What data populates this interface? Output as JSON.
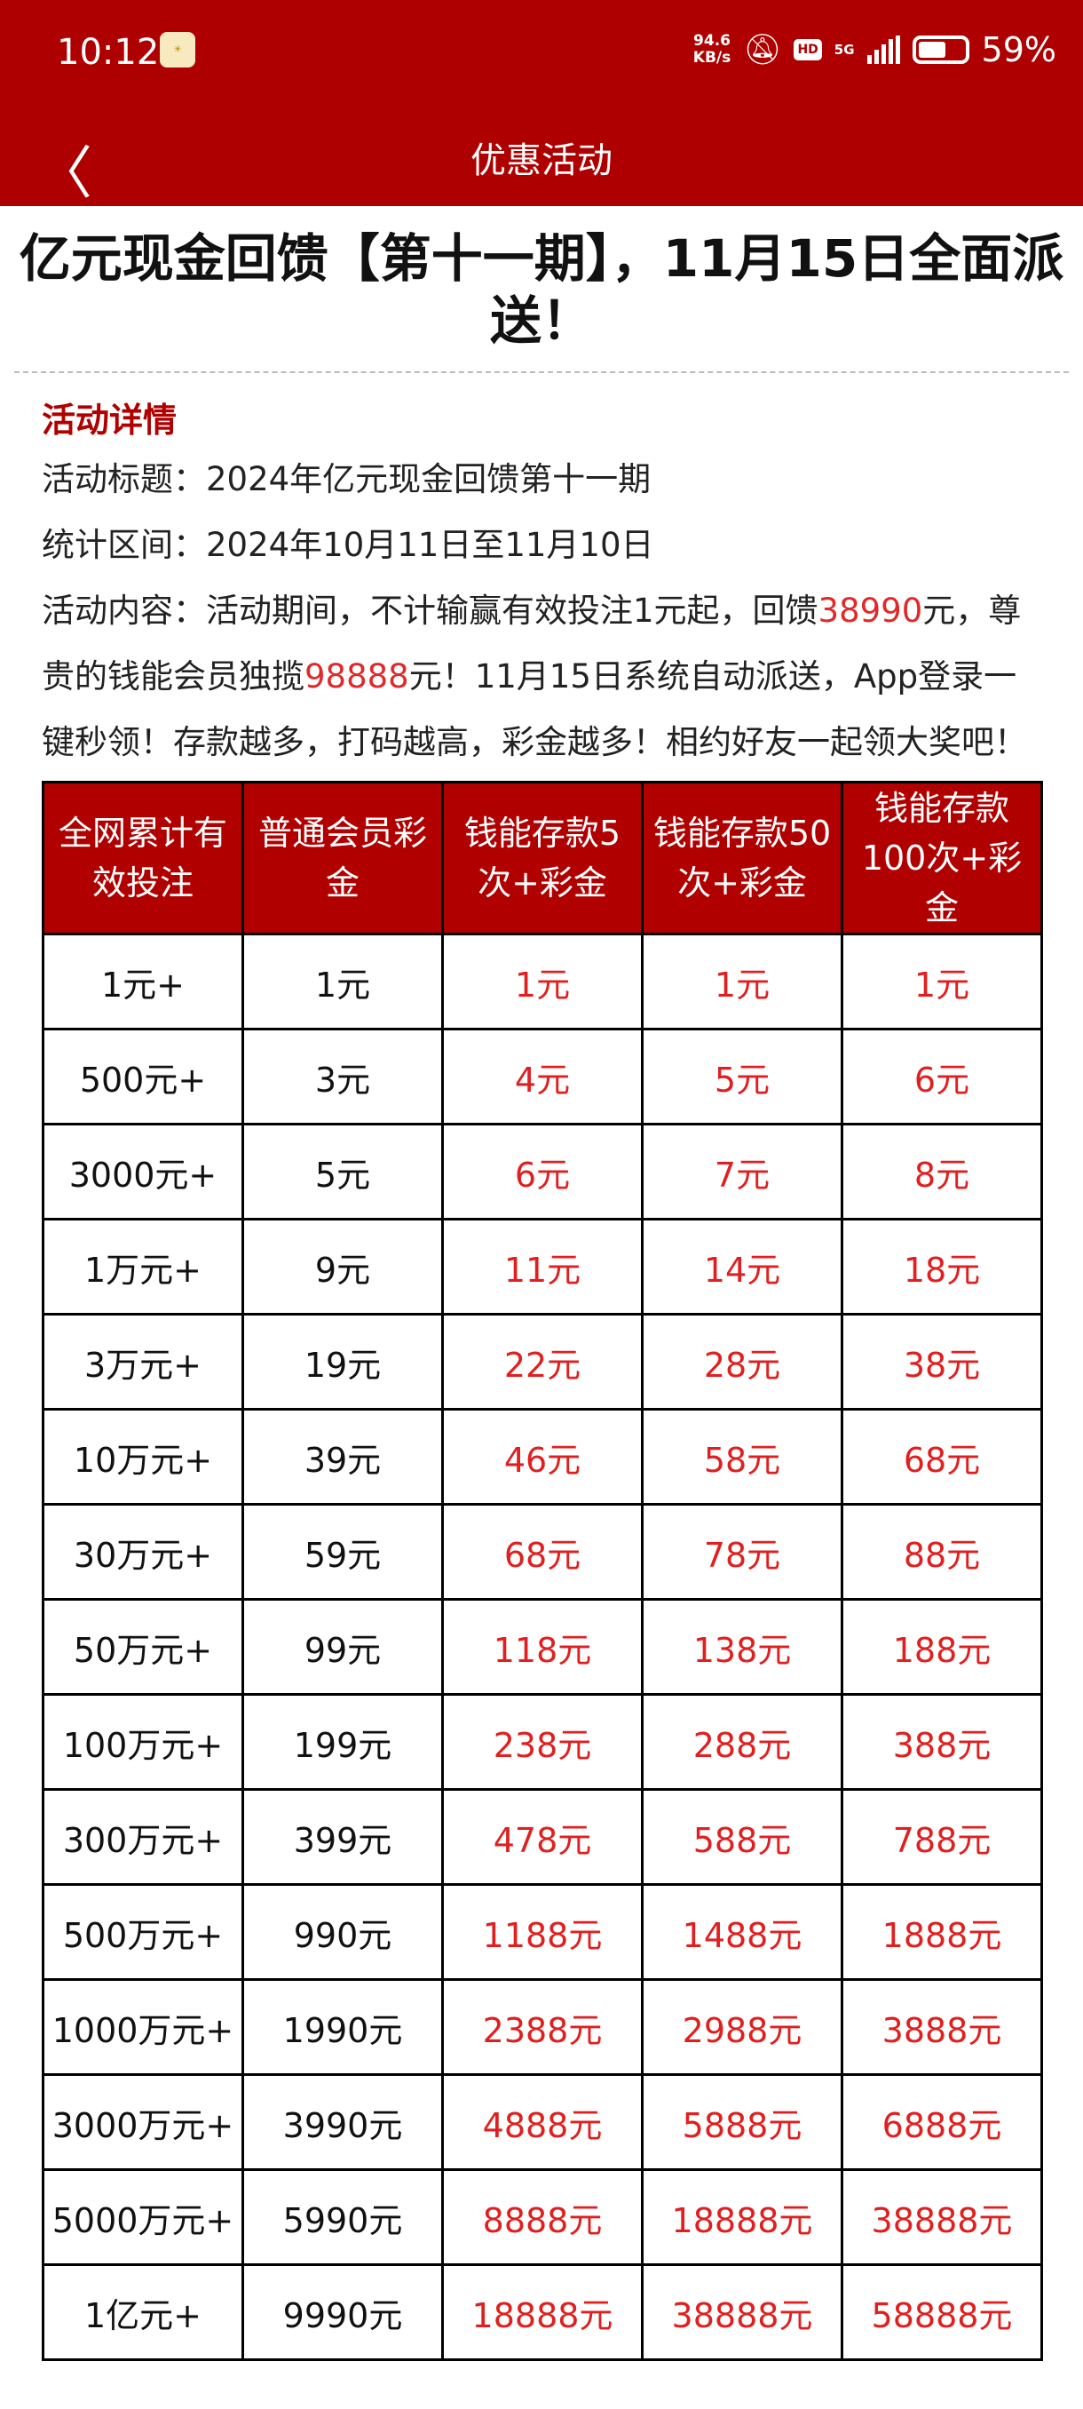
{
  "status_bar": {
    "time": "10:12",
    "app_icon": "990.com",
    "net_speed": "94.6",
    "net_unit": "KB/s",
    "hd": "HD",
    "network": "5G",
    "battery": "59%",
    "battery_level": 59,
    "icons": [
      "bell-off-icon",
      "signal-icon",
      "battery-icon"
    ]
  },
  "header": {
    "title": "优惠活动",
    "back_icon": "chevron-left-icon"
  },
  "article": {
    "title": "亿元现金回馈【第十一期】，11月15日全面派送！",
    "section": "活动详情",
    "lines": {
      "title_line": "活动标题：2024年亿元现金回馈第十一期",
      "period_line": "统计区间：2024年10月11日至11月10日",
      "content_a": "活动内容：活动期间，不计输赢有效投注1元起，回馈",
      "content_red1": "38990",
      "content_b": "元，尊贵的钱能会员独揽",
      "content_red2": "98888",
      "content_c": "元！11月15日系统自动派送，App登录一键秒领！存款越多，打码越高，彩金越多！相约好友一起领大奖吧！"
    }
  },
  "colors": {
    "brand": "#ae0000",
    "highlight": "#e02020"
  },
  "table": {
    "headers": [
      "全网累计有效投注",
      "普通会员彩金",
      "钱能存款5次+彩金",
      "钱能存款50次+彩金",
      "钱能存款100次+彩金"
    ],
    "rows": [
      [
        "1元+",
        "1元",
        "1元",
        "1元",
        "1元"
      ],
      [
        "500元+",
        "3元",
        "4元",
        "5元",
        "6元"
      ],
      [
        "3000元+",
        "5元",
        "6元",
        "7元",
        "8元"
      ],
      [
        "1万元+",
        "9元",
        "11元",
        "14元",
        "18元"
      ],
      [
        "3万元+",
        "19元",
        "22元",
        "28元",
        "38元"
      ],
      [
        "10万元+",
        "39元",
        "46元",
        "58元",
        "68元"
      ],
      [
        "30万元+",
        "59元",
        "68元",
        "78元",
        "88元"
      ],
      [
        "50万元+",
        "99元",
        "118元",
        "138元",
        "188元"
      ],
      [
        "100万元+",
        "199元",
        "238元",
        "288元",
        "388元"
      ],
      [
        "300万元+",
        "399元",
        "478元",
        "588元",
        "788元"
      ],
      [
        "500万元+",
        "990元",
        "1188元",
        "1488元",
        "1888元"
      ],
      [
        "1000万元+",
        "1990元",
        "2388元",
        "2988元",
        "3888元"
      ],
      [
        "3000万元+",
        "3990元",
        "4888元",
        "5888元",
        "6888元"
      ],
      [
        "5000万元+",
        "5990元",
        "8888元",
        "18888元",
        "38888元"
      ],
      [
        "1亿元+",
        "9990元",
        "18888元",
        "38888元",
        "58888元"
      ]
    ]
  }
}
